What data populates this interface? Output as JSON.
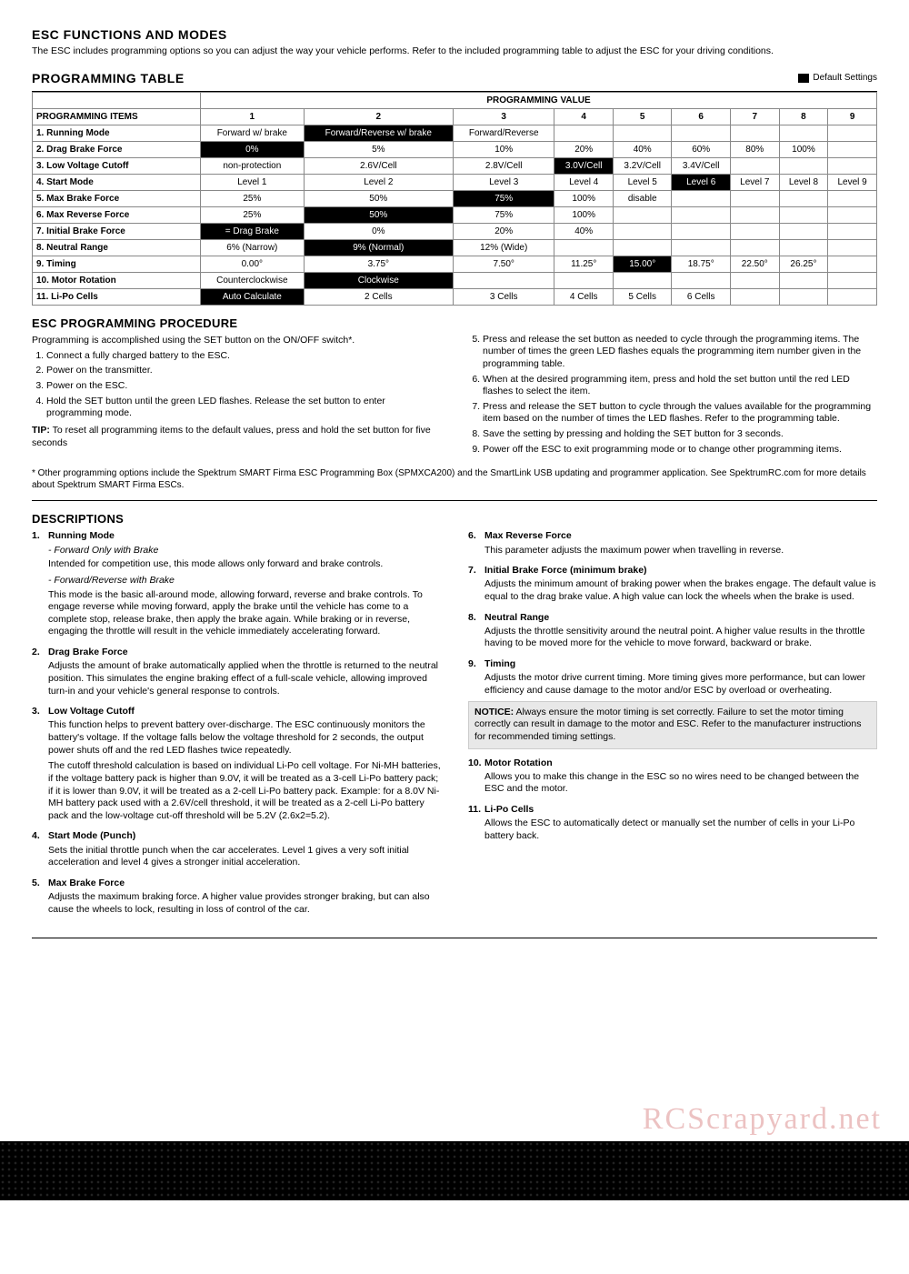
{
  "heading1": "ESC FUNCTIONS AND MODES",
  "intro": "The ESC includes programming options so you can adjust the way your vehicle performs. Refer to the included programming table to adjust the ESC for your driving conditions.",
  "progTableTitle": "PROGRAMMING TABLE",
  "legendLabel": "Default Settings",
  "colHeaderLeft": "PROGRAMMING ITEMS",
  "colHeaderSpan": "PROGRAMMING VALUE",
  "valueCols": [
    "1",
    "2",
    "3",
    "4",
    "5",
    "6",
    "7",
    "8",
    "9"
  ],
  "rows": [
    {
      "label": "1. Running Mode",
      "cells": [
        "Forward w/ brake",
        "Forward/Reverse w/ brake",
        "Forward/Reverse",
        "",
        "",
        "",
        "",
        "",
        ""
      ],
      "default": 1
    },
    {
      "label": "2. Drag Brake Force",
      "cells": [
        "0%",
        "5%",
        "10%",
        "20%",
        "40%",
        "60%",
        "80%",
        "100%",
        ""
      ],
      "default": 0
    },
    {
      "label": "3. Low Voltage Cutoff",
      "cells": [
        "non-protection",
        "2.6V/Cell",
        "2.8V/Cell",
        "3.0V/Cell",
        "3.2V/Cell",
        "3.4V/Cell",
        "",
        "",
        ""
      ],
      "default": 3
    },
    {
      "label": "4. Start Mode",
      "cells": [
        "Level 1",
        "Level 2",
        "Level 3",
        "Level 4",
        "Level 5",
        "Level 6",
        "Level 7",
        "Level 8",
        "Level 9"
      ],
      "default": 5
    },
    {
      "label": "5. Max Brake Force",
      "cells": [
        "25%",
        "50%",
        "75%",
        "100%",
        "disable",
        "",
        "",
        "",
        ""
      ],
      "default": 2
    },
    {
      "label": "6. Max Reverse Force",
      "cells": [
        "25%",
        "50%",
        "75%",
        "100%",
        "",
        "",
        "",
        "",
        ""
      ],
      "default": 1
    },
    {
      "label": "7. Initial Brake Force",
      "cells": [
        "= Drag Brake",
        "0%",
        "20%",
        "40%",
        "",
        "",
        "",
        "",
        ""
      ],
      "default": 0
    },
    {
      "label": "8. Neutral Range",
      "cells": [
        "6% (Narrow)",
        "9% (Normal)",
        "12% (Wide)",
        "",
        "",
        "",
        "",
        "",
        ""
      ],
      "default": 1
    },
    {
      "label": "9. Timing",
      "cells": [
        "0.00°",
        "3.75°",
        "7.50°",
        "11.25°",
        "15.00°",
        "18.75°",
        "22.50°",
        "26.25°",
        ""
      ],
      "default": 4
    },
    {
      "label": "10. Motor Rotation",
      "cells": [
        "Counterclockwise",
        "Clockwise",
        "",
        "",
        "",
        "",
        "",
        "",
        ""
      ],
      "default": 1
    },
    {
      "label": "11. Li-Po Cells",
      "cells": [
        "Auto Calculate",
        "2 Cells",
        "3 Cells",
        "4 Cells",
        "5 Cells",
        "6 Cells",
        "",
        "",
        ""
      ],
      "default": 0
    }
  ],
  "procTitle": "ESC PROGRAMMING PROCEDURE",
  "procIntro": "Programming is accomplished using the SET button on the ON/OFF switch*.",
  "procLeft": [
    "Connect a fully charged battery to the ESC.",
    "Power on the transmitter.",
    "Power on the ESC.",
    "Hold the SET button until the green LED flashes. Release the set button to enter programming mode."
  ],
  "tipLabel": "TIP:",
  "tipText": "To reset all programming items to the default values, press and hold the set button for five seconds",
  "procRight": [
    "Press and release the set button as needed to cycle through the programming items. The number of times the green LED flashes equals the programming item number given in the programming table.",
    "When at the desired programming item, press and hold the set button until the red LED flashes to select the item.",
    "Press and release the SET button to cycle through the values available for the programming item based on the number of times the LED flashes. Refer to the programming table.",
    "Save the setting by pressing and holding the SET button for 3 seconds.",
    "Power off the ESC to exit programming mode or to change other programming items."
  ],
  "footnote": "* Other programming options include the Spektrum SMART Firma ESC Programming Box (SPMXCA200) and the SmartLink USB updating and programmer application. See SpektrumRC.com for more details about Spektrum SMART Firma ESCs.",
  "descTitle": "DESCRIPTIONS",
  "descLeft": [
    {
      "n": "1.",
      "t": "Running Mode",
      "body": [
        {
          "sub": "- Forward Only with Brake",
          "text": "Intended for competition use, this mode allows only forward and brake controls."
        },
        {
          "sub": "- Forward/Reverse with Brake",
          "text": "This mode is the basic all-around mode, allowing forward, reverse and brake controls. To engage reverse while moving forward, apply the brake until the vehicle has come to a complete stop, release brake, then apply the brake again. While braking or in reverse, engaging the throttle will result in the vehicle immediately accelerating forward."
        }
      ]
    },
    {
      "n": "2.",
      "t": "Drag Brake Force",
      "body": [
        {
          "text": "Adjusts the amount of brake automatically applied when the throttle is returned to the neutral position. This simulates the engine braking effect of a full-scale vehicle, allowing improved turn-in and your vehicle's general response to controls."
        }
      ]
    },
    {
      "n": "3.",
      "t": "Low Voltage Cutoff",
      "body": [
        {
          "text": "This function helps to prevent battery over-discharge. The ESC continuously monitors the battery's voltage. If the voltage falls below the voltage threshold for 2 seconds, the output power shuts off and the red LED flashes twice repeatedly."
        },
        {
          "text": "The cutoff threshold calculation is based on individual Li-Po cell voltage. For Ni-MH batteries, if the voltage battery pack is higher than 9.0V, it will be treated as a 3-cell Li-Po battery pack; if it is lower than 9.0V, it will be treated as a 2-cell Li-Po battery pack. Example: for a 8.0V Ni-MH battery pack used with a 2.6V/cell threshold, it will be treated as a 2-cell Li-Po battery pack and the low-voltage cut-off threshold will be 5.2V (2.6x2=5.2)."
        }
      ]
    },
    {
      "n": "4.",
      "t": "Start Mode (Punch)",
      "body": [
        {
          "text": "Sets the initial throttle punch when the car accelerates. Level 1 gives a very soft initial acceleration and level 4 gives a stronger initial acceleration."
        }
      ]
    },
    {
      "n": "5.",
      "t": "Max Brake Force",
      "body": [
        {
          "text": "Adjusts the maximum braking force. A higher value provides stronger braking, but can also cause the wheels to lock, resulting in loss of control of the car."
        }
      ]
    }
  ],
  "descRight": [
    {
      "n": "6.",
      "t": "Max Reverse Force",
      "body": [
        {
          "text": "This parameter adjusts the maximum power when travelling in reverse."
        }
      ]
    },
    {
      "n": "7.",
      "t": "Initial Brake Force (minimum brake)",
      "body": [
        {
          "text": "Adjusts the minimum amount of braking power when the brakes engage. The default value is equal to the drag brake value. A high value can lock the wheels when the brake is used."
        }
      ]
    },
    {
      "n": "8.",
      "t": "Neutral Range",
      "body": [
        {
          "text": "Adjusts the throttle sensitivity around the neutral point. A higher value results in the throttle having to be moved more for the vehicle to move forward, backward or brake."
        }
      ]
    },
    {
      "n": "9.",
      "t": "Timing",
      "body": [
        {
          "text": "Adjusts the motor drive current timing. More timing gives more performance, but can lower efficiency and cause damage to the motor and/or ESC by overload or overheating."
        }
      ],
      "notice": "NOTICE: Always ensure the motor timing is set correctly. Failure to set the motor timing correctly can result in damage to the motor and ESC. Refer to the manufacturer instructions for recommended timing settings."
    },
    {
      "n": "10.",
      "t": "Motor Rotation",
      "body": [
        {
          "text": "Allows you to make this change in the ESC so no wires need to be changed between the ESC and the motor."
        }
      ]
    },
    {
      "n": "11.",
      "t": "Li-Po Cells",
      "body": [
        {
          "text": "Allows the ESC to automatically detect or manually set the number of cells in your Li-Po battery back."
        }
      ]
    }
  ],
  "watermark": "RCScrapyard.net"
}
